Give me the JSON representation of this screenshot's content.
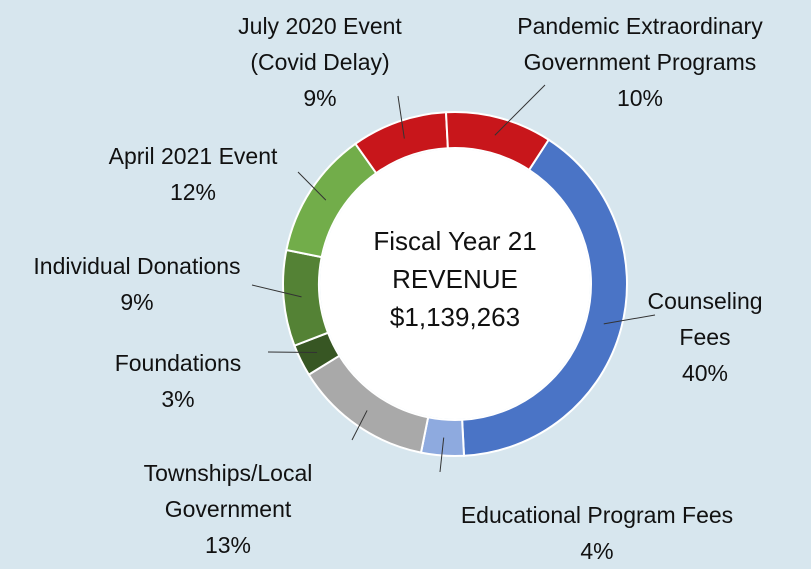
{
  "chart_data": {
    "type": "donut",
    "center_text": [
      "Fiscal Year 21",
      "REVENUE",
      "$1,139,263"
    ],
    "categories": [
      "Counseling Fees",
      "Educational Program Fees",
      "Townships/Local Government",
      "Foundations",
      "Individual Donations",
      "April 2021 Event",
      "July 2020 Event (Covid Delay)",
      "Pandemic Extraordinary Government Programs"
    ],
    "values": [
      40,
      4,
      13,
      3,
      9,
      12,
      9,
      10
    ],
    "value_labels": [
      "40%",
      "4%",
      "13%",
      "3%",
      "9%",
      "12%",
      "9%",
      "10%"
    ],
    "colors": [
      "#4a74c6",
      "#8eaadf",
      "#a9a9a9",
      "#375623",
      "#548235",
      "#72ad4a",
      "#c8161b",
      "#c8161b"
    ]
  }
}
